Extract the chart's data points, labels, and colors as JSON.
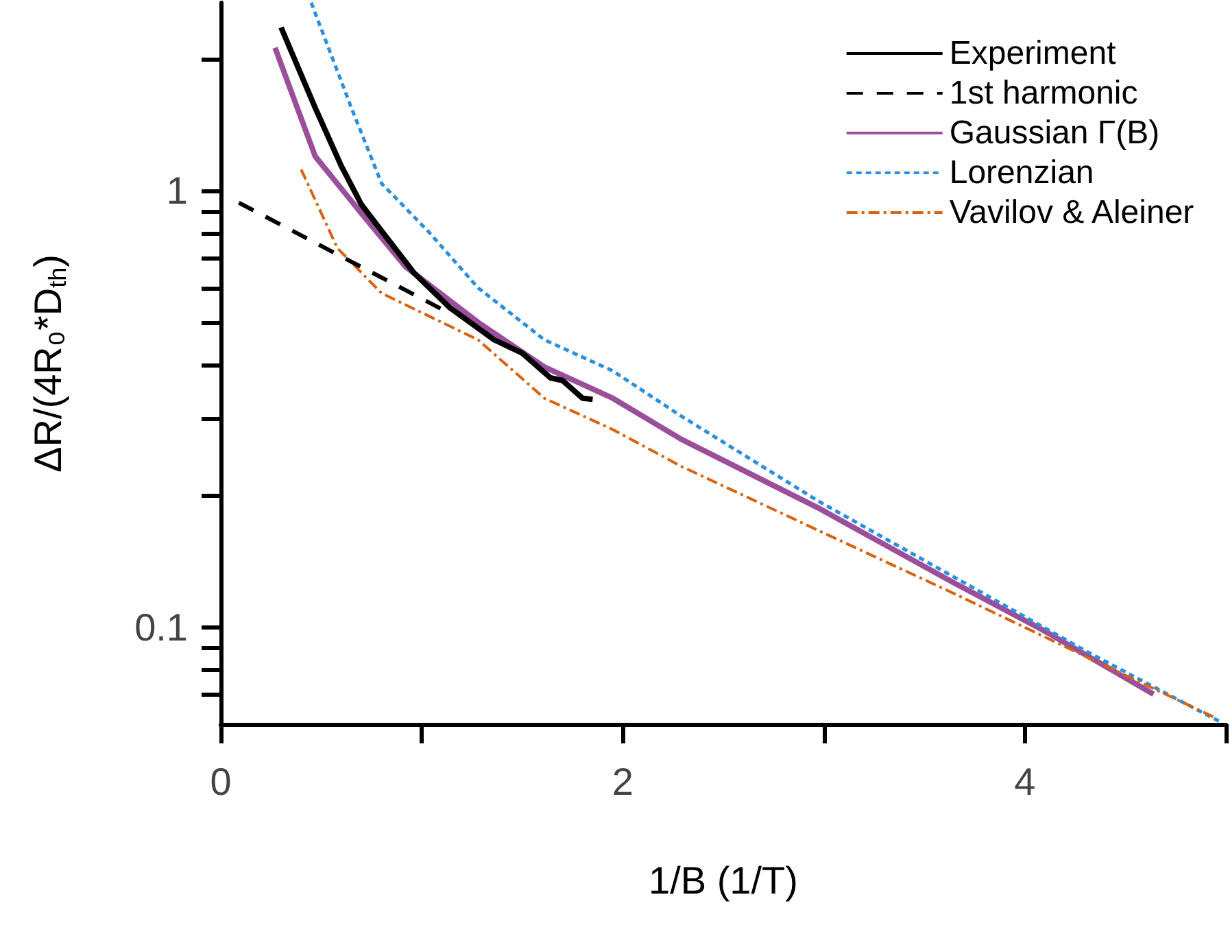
{
  "chart_data": {
    "type": "line",
    "xlabel": "1/B (1/T)",
    "ylabel": "ΔR/(4R₀*D$_{th}$)",
    "log": "y",
    "xlim": [
      0,
      5
    ],
    "ylim": [
      0.06,
      2.7
    ],
    "xticks": [
      0,
      {
        "value": 1,
        "label": null
      },
      2,
      {
        "value": 3,
        "label": null
      },
      4,
      {
        "value": 5,
        "label": null
      }
    ],
    "yticks": [
      {
        "value": 0.07,
        "label": null
      },
      {
        "value": 0.08,
        "label": null
      },
      {
        "value": 0.09,
        "label": null
      },
      0.1,
      {
        "value": 0.2,
        "label": null
      },
      {
        "value": 0.3,
        "label": null
      },
      {
        "value": 0.4,
        "label": null
      },
      {
        "value": 0.5,
        "label": null
      },
      {
        "value": 0.6,
        "label": null
      },
      {
        "value": 0.7,
        "label": null
      },
      {
        "value": 0.8,
        "label": null
      },
      {
        "value": 0.9,
        "label": null
      },
      1,
      {
        "value": 2,
        "label": null
      }
    ],
    "grid": false,
    "legend": "top right",
    "marker": "none",
    "series": [
      {
        "name": "Experiment",
        "color": "#000000",
        "line_style": "solid",
        "x": [
          0.3,
          0.47,
          0.6,
          0.7,
          0.8,
          0.96,
          1.14,
          1.36,
          1.5,
          1.64,
          1.7,
          1.8,
          1.85
        ],
        "values": [
          2.37,
          1.55,
          1.14,
          0.93,
          0.81,
          0.65,
          0.54,
          0.456,
          0.425,
          0.373,
          0.368,
          0.335,
          0.333
        ]
      },
      {
        "name": "1st harmonic",
        "color": "#000000",
        "line_style": "dashed",
        "x": [
          0.09,
          1.13
        ],
        "values": [
          0.94,
          0.527
        ]
      },
      {
        "name": "Gaussian Γ(B)",
        "color": "#9b4f9b",
        "line_style": "solid",
        "x": [
          0.27,
          0.47,
          0.69,
          0.92,
          1.28,
          1.61,
          1.95,
          2.29,
          2.97,
          3.64,
          4.09,
          4.64
        ],
        "values": [
          2.13,
          1.2,
          0.9,
          0.67,
          0.5,
          0.395,
          0.335,
          0.27,
          0.188,
          0.127,
          0.0986,
          0.0703
        ]
      },
      {
        "name": "Lorenzian",
        "color": "#2b8fe0",
        "line_style": "dotted",
        "x": [
          0.45,
          0.65,
          0.8,
          1.03,
          1.28,
          1.61,
          1.95,
          2.29,
          2.97,
          3.64,
          4.32,
          4.97
        ],
        "values": [
          2.7,
          1.55,
          1.04,
          0.81,
          0.6,
          0.456,
          0.387,
          0.305,
          0.195,
          0.131,
          0.0874,
          0.0608
        ]
      },
      {
        "name": "Vavilov & Aleiner",
        "color": "#d9620f",
        "line_style": "dashdot",
        "x": [
          0.4,
          0.58,
          0.8,
          1.28,
          1.61,
          1.95,
          2.29,
          2.97,
          3.64,
          4.32,
          4.95
        ],
        "values": [
          1.12,
          0.74,
          0.583,
          0.456,
          0.335,
          0.284,
          0.234,
          0.167,
          0.12,
          0.085,
          0.062
        ]
      }
    ]
  }
}
